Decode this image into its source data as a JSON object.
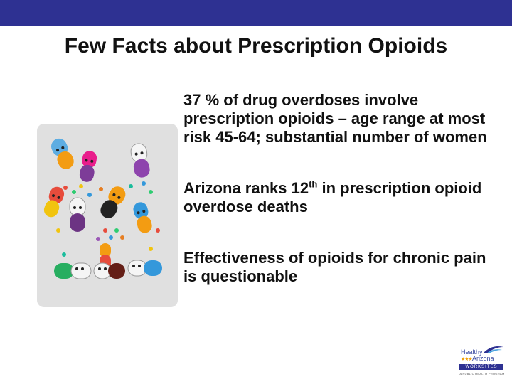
{
  "slide": {
    "title": "Few Facts about Prescription Opioids",
    "bullets": [
      {
        "text": "37 % of drug overdoses involve prescription opioids – age range at most risk 45-64; substantial number of women"
      },
      {
        "pre": "Arizona ranks 12",
        "sup": "th",
        "post": " in prescription opioid overdose deaths"
      },
      {
        "text": "Effectiveness of opioids for chronic pain is questionable"
      }
    ]
  },
  "logo": {
    "line1": "Healthy",
    "stars": "★★★",
    "line2": "Arizona",
    "band": "WORKSITES",
    "small": "A PUBLIC HEALTH PROGRAM"
  },
  "colors": {
    "top_bar": "#2e3192",
    "title_text": "#111111",
    "illustration_bg": "#e0e0e0"
  }
}
